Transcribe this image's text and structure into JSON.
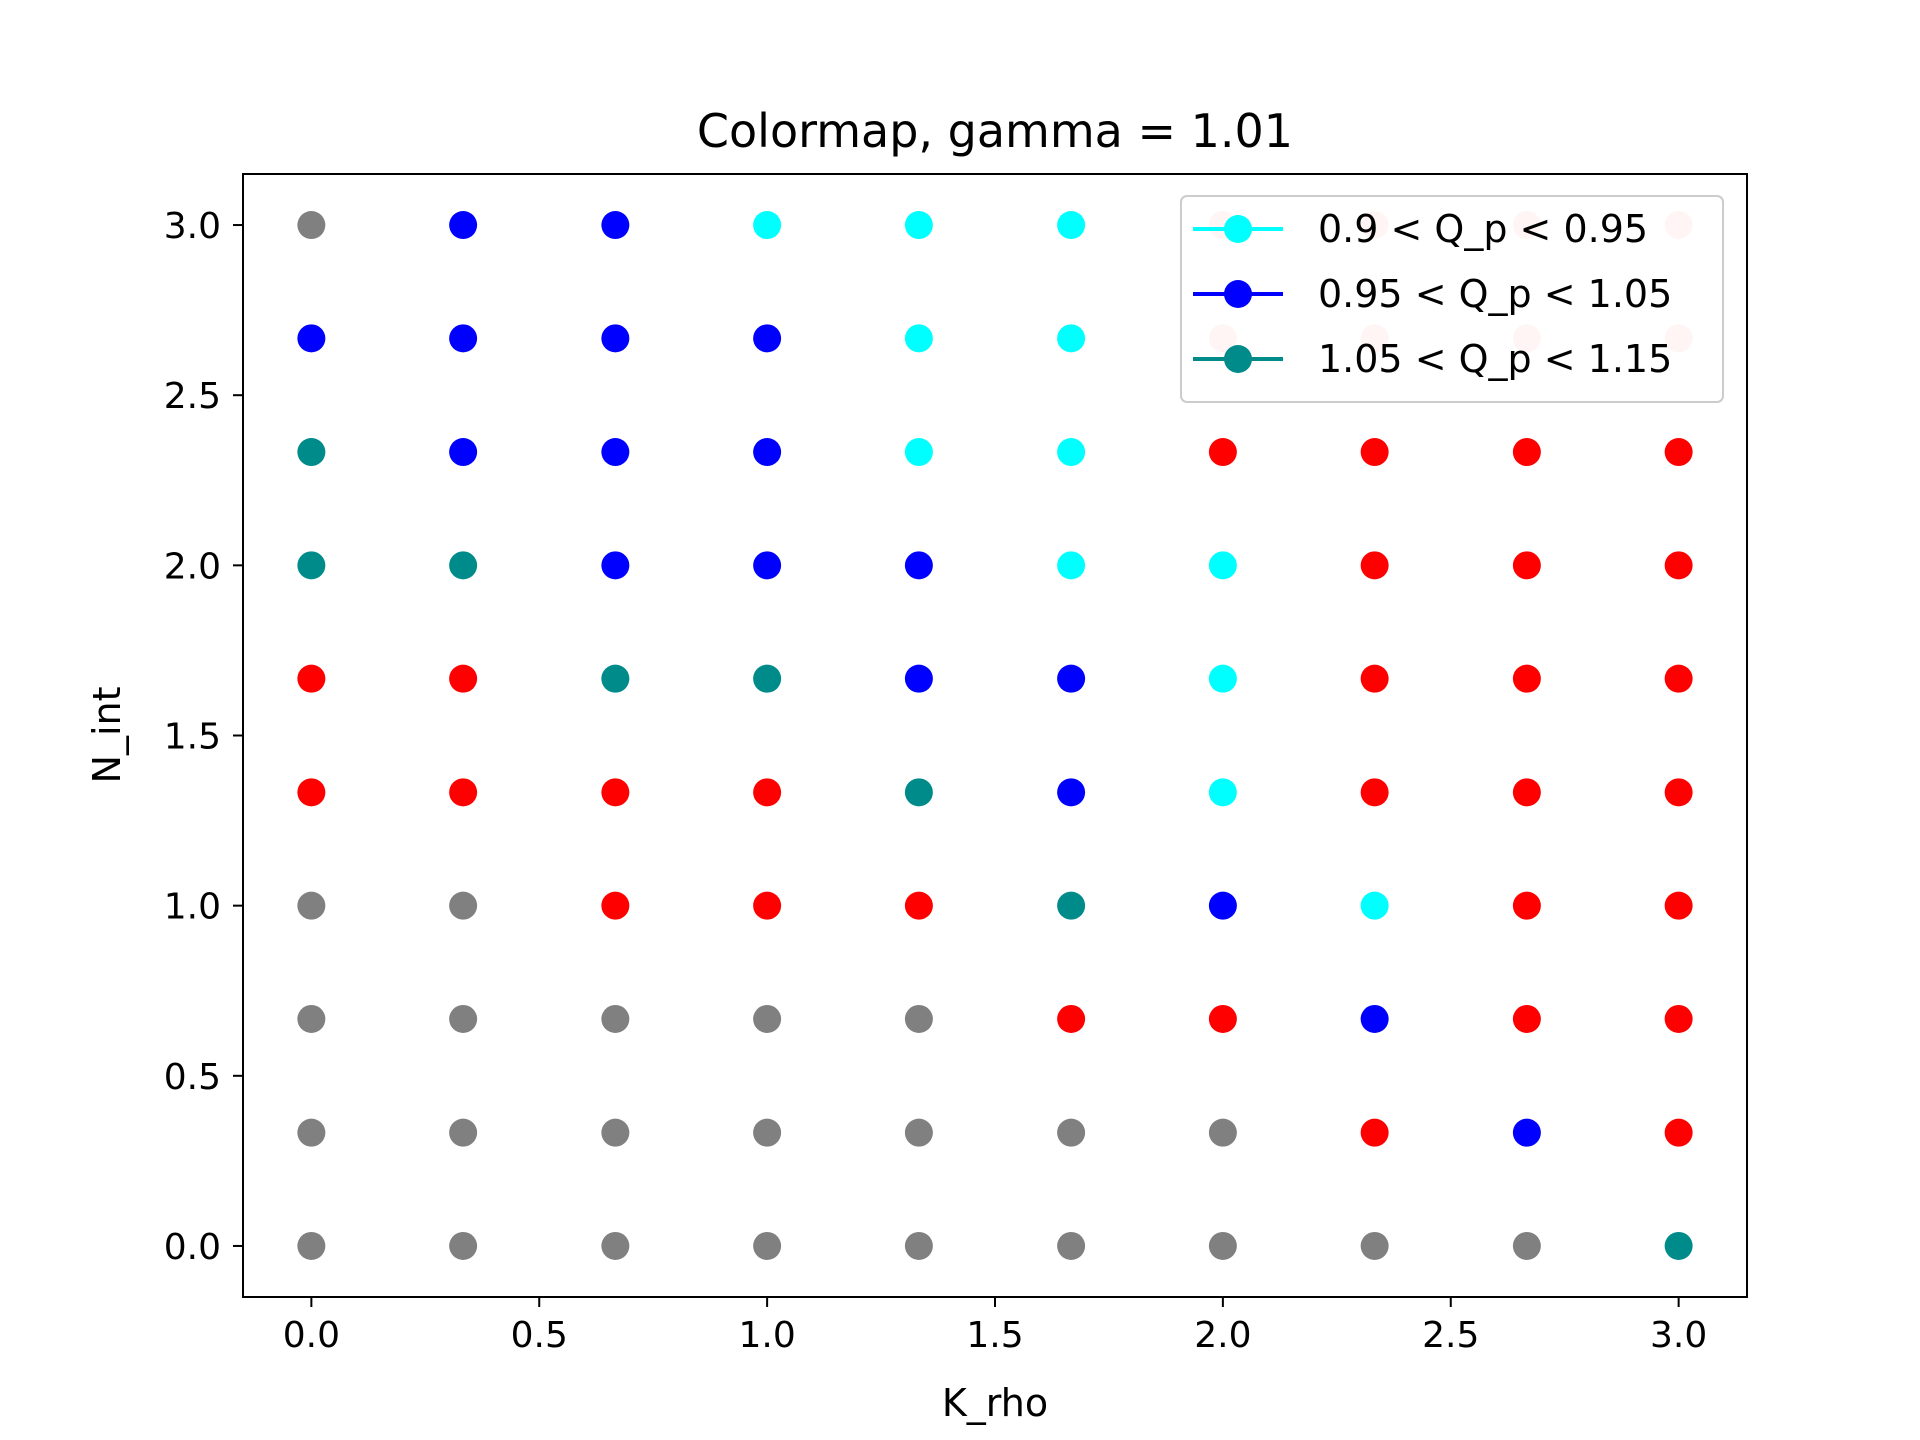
{
  "chart_data": {
    "type": "scatter",
    "title": "Colormap, gamma = 1.01",
    "xlabel": "K_rho",
    "ylabel": "N_int",
    "xlim": [
      -0.15,
      3.15
    ],
    "ylim": [
      -0.15,
      3.15
    ],
    "xticks": [
      "0.0",
      "0.5",
      "1.0",
      "1.5",
      "2.0",
      "2.5",
      "3.0"
    ],
    "yticks": [
      "0.0",
      "0.5",
      "1.0",
      "1.5",
      "2.0",
      "2.5",
      "3.0"
    ],
    "grid": false,
    "legend_placement": "upper right",
    "colors": {
      "gray": "#808080",
      "blue": "#0000ff",
      "cyan": "#00ffff",
      "teal": "#008b8b",
      "red": "#ff0000",
      "pink": "#ffcccc"
    },
    "legend": [
      {
        "label": "0.9 < Q_p < 0.95",
        "color": "cyan"
      },
      {
        "label": "0.95 < Q_p < 1.05",
        "color": "blue"
      },
      {
        "label": "1.05 < Q_p < 1.15",
        "color": "teal"
      }
    ],
    "x": [
      0,
      0.333,
      0.667,
      1.0,
      1.333,
      1.667,
      2.0,
      2.333,
      2.667,
      3.0
    ],
    "y": [
      3.0,
      2.667,
      2.333,
      2.0,
      1.667,
      1.333,
      1.0,
      0.667,
      0.333,
      0.0
    ],
    "point_colors": [
      [
        "gray",
        "blue",
        "blue",
        "cyan",
        "cyan",
        "cyan",
        "pink",
        "pink",
        "pink",
        "pink"
      ],
      [
        "blue",
        "blue",
        "blue",
        "blue",
        "cyan",
        "cyan",
        "pink",
        "pink",
        "pink",
        "pink"
      ],
      [
        "teal",
        "blue",
        "blue",
        "blue",
        "cyan",
        "cyan",
        "red",
        "red",
        "red",
        "red"
      ],
      [
        "teal",
        "teal",
        "blue",
        "blue",
        "blue",
        "cyan",
        "cyan",
        "red",
        "red",
        "red"
      ],
      [
        "red",
        "red",
        "teal",
        "teal",
        "blue",
        "blue",
        "cyan",
        "red",
        "red",
        "red"
      ],
      [
        "red",
        "red",
        "red",
        "red",
        "teal",
        "blue",
        "cyan",
        "red",
        "red",
        "red"
      ],
      [
        "gray",
        "gray",
        "red",
        "red",
        "red",
        "teal",
        "blue",
        "cyan",
        "red",
        "red"
      ],
      [
        "gray",
        "gray",
        "gray",
        "gray",
        "gray",
        "red",
        "red",
        "blue",
        "red",
        "red"
      ],
      [
        "gray",
        "gray",
        "gray",
        "gray",
        "gray",
        "gray",
        "gray",
        "red",
        "blue",
        "red"
      ],
      [
        "gray",
        "gray",
        "gray",
        "gray",
        "gray",
        "gray",
        "gray",
        "gray",
        "gray",
        "teal"
      ]
    ]
  }
}
